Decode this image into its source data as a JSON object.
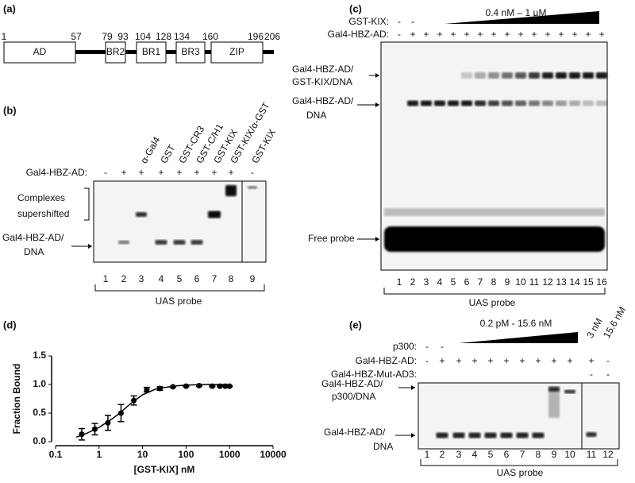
{
  "panel_a": {
    "label": "(a)",
    "positions": [
      1,
      57,
      79,
      93,
      104,
      128,
      134,
      160,
      196,
      206
    ],
    "domains": [
      "AD",
      "BR2",
      "BR1",
      "BR3",
      "ZIP"
    ]
  },
  "panel_b": {
    "label": "(b)",
    "columns": [
      "α-Gal4",
      "GST",
      "GST-CR3",
      "GST-C/H1",
      "GST-KIX",
      "GST-KIX/α-GST",
      "GST-KIX"
    ],
    "row_label": "Gal4-HBZ-AD:",
    "row_signs": [
      "-",
      "+",
      "+",
      "+",
      "+",
      "+",
      "+",
      "+",
      "-"
    ],
    "band_labels": [
      [
        "Complexes",
        "supershifted"
      ],
      [
        "Gal4-HBZ-AD/",
        "DNA"
      ]
    ],
    "lanes": [
      1,
      2,
      3,
      4,
      5,
      6,
      7,
      8,
      9
    ],
    "probe": "UAS probe"
  },
  "panel_c": {
    "label": "(c)",
    "rows": [
      {
        "label": "GST-KIX:",
        "signs": [
          "-",
          "-"
        ]
      },
      {
        "label": "Gal4-HBZ-AD:",
        "signs": [
          "-",
          "+",
          "+",
          "+",
          "+",
          "+",
          "+",
          "+",
          "+",
          "+",
          "+",
          "+",
          "+",
          "+",
          "+",
          "+"
        ]
      }
    ],
    "range": "0.4 nM – 1 µM",
    "band_labels": [
      [
        "Gal4-HBZ-AD/",
        "GST-KIX/DNA"
      ],
      [
        "Gal4-HBZ-AD/",
        "DNA"
      ],
      [
        "Free probe"
      ]
    ],
    "lanes": [
      1,
      2,
      3,
      4,
      5,
      6,
      7,
      8,
      9,
      10,
      11,
      12,
      13,
      14,
      15,
      16
    ],
    "probe": "UAS probe"
  },
  "chart_data": {
    "type": "scatter",
    "panel_label": "(d)",
    "x_label": "[GST-KIX] nM",
    "y_label": "Fraction Bound",
    "log_x": true,
    "color": "#000000",
    "xlim": [
      0.1,
      10000
    ],
    "xticks": [
      0.1,
      1,
      10,
      100,
      1000,
      10000
    ],
    "ylim": [
      0,
      1.5
    ],
    "yticks": [
      {
        "value": 0,
        "label": "0.0"
      },
      {
        "value": 0.5,
        "label": "0.5"
      },
      {
        "value": 1,
        "label": "1.0"
      },
      {
        "value": 1.5,
        "label": "1.5"
      }
    ],
    "x": [
      0.4,
      0.8,
      1.6,
      3.2,
      6.3,
      12.5,
      25,
      50,
      100,
      200,
      400,
      600,
      800,
      1000
    ],
    "values": [
      0.13,
      0.22,
      0.33,
      0.5,
      0.72,
      0.91,
      0.93,
      0.96,
      0.97,
      0.98,
      0.97,
      0.97,
      0.97,
      0.97
    ],
    "errors": [
      0.1,
      0.1,
      0.13,
      0.15,
      0.08,
      0.04,
      0.03,
      0.01,
      0.01,
      0.01,
      0.01,
      0.01,
      0.01,
      0.01
    ],
    "fit": {
      "x": [
        0.3,
        0.5,
        1,
        2,
        3,
        5,
        10,
        20,
        50,
        100,
        300,
        1000
      ],
      "values": [
        0.08,
        0.14,
        0.25,
        0.4,
        0.5,
        0.65,
        0.82,
        0.92,
        0.97,
        0.99,
        1,
        1
      ]
    }
  },
  "panel_e": {
    "label": "(e)",
    "rows": [
      {
        "label": "p300:",
        "signs": [
          "-",
          "-"
        ]
      },
      {
        "label": "Gal4-HBZ-AD:",
        "signs": [
          "-",
          "+",
          "+",
          "+",
          "+",
          "+",
          "+",
          "+",
          "+",
          "+",
          "+",
          "-"
        ]
      },
      {
        "label": "Gal4-HBZ-Mut-AD3:",
        "signs": [
          "-",
          "-"
        ]
      }
    ],
    "range": "0.2 pM - 15.6 nM",
    "extra": [
      "3 nM",
      "15.6 nM"
    ],
    "band_labels": [
      [
        "Gal4-HBZ-AD/",
        "p300/DNA"
      ],
      [
        "Gal4-HBZ-AD/",
        "DNA"
      ]
    ],
    "lanes": [
      1,
      2,
      3,
      4,
      5,
      6,
      7,
      8,
      9,
      10,
      11,
      12
    ],
    "probe": "UAS probe"
  }
}
